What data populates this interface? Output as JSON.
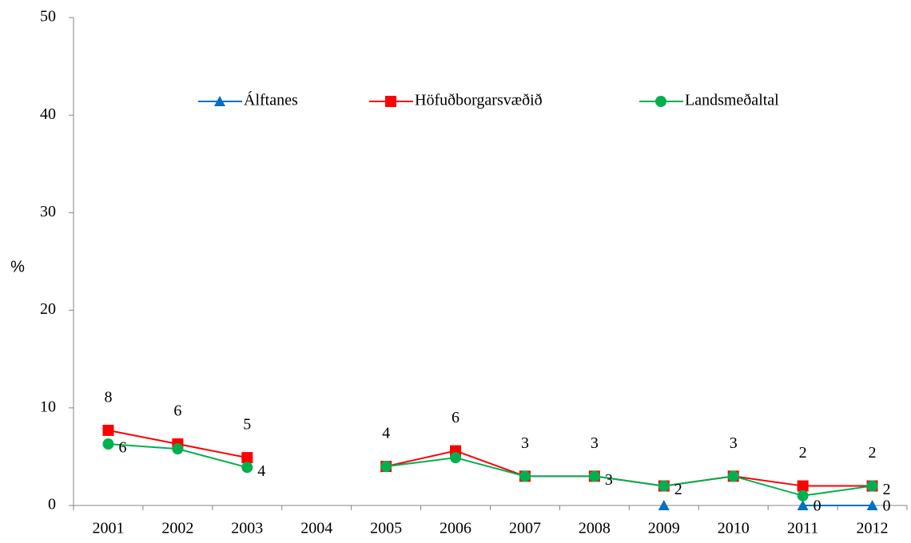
{
  "chart_data": {
    "type": "line",
    "y_label": "%",
    "categories": [
      "2001",
      "2002",
      "2003",
      "2004",
      "2005",
      "2006",
      "2007",
      "2008",
      "2009",
      "2010",
      "2011",
      "2012"
    ],
    "series": [
      {
        "name": "Álftanes",
        "color": "#0070c0",
        "marker": "triangle",
        "values": [
          null,
          null,
          null,
          null,
          null,
          null,
          null,
          null,
          0,
          null,
          0,
          0
        ],
        "value_labels": [
          null,
          null,
          null,
          null,
          null,
          null,
          null,
          null,
          null,
          null,
          "0",
          "0"
        ]
      },
      {
        "name": "Höfuðborgarsvæðið",
        "color": "#ff0000",
        "marker": "square",
        "values": [
          7.7,
          6.3,
          4.9,
          null,
          4.0,
          5.6,
          3.0,
          3.0,
          2.0,
          3.0,
          2.0,
          2.0
        ],
        "value_labels": [
          "8",
          "6",
          "5",
          null,
          "4",
          "6",
          "3",
          "3",
          null,
          "3",
          "2",
          "2"
        ]
      },
      {
        "name": "Landsmeðaltal",
        "color": "#00b050",
        "marker": "circle",
        "values": [
          6.3,
          5.8,
          3.9,
          null,
          4.0,
          4.9,
          3.0,
          3.0,
          2.0,
          3.0,
          1.0,
          2.0
        ],
        "value_labels": [
          "6",
          null,
          "4",
          null,
          null,
          null,
          null,
          "3",
          "2",
          null,
          null,
          "2"
        ]
      }
    ],
    "ylim": [
      0,
      50
    ],
    "yticks": [
      0,
      10,
      20,
      30,
      40,
      50
    ],
    "grid": false,
    "legend": "top"
  }
}
